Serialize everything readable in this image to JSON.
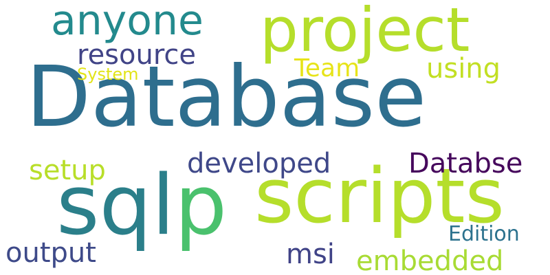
{
  "words": [
    {
      "text": "Database",
      "color": "#2e6e8e"
    },
    {
      "text": "sqlp",
      "color": "#2b7f8a"
    },
    {
      "text": "scripts",
      "color": "#b5de2b"
    },
    {
      "text": "project",
      "color": "#b5de2b"
    },
    {
      "text": "anyone",
      "color": "#238a8d"
    },
    {
      "text": "resource",
      "color": "#414487"
    },
    {
      "text": "Team",
      "color": "#e7e419"
    },
    {
      "text": "using",
      "color": "#c2df23"
    },
    {
      "text": "System",
      "color": "#e2e418"
    },
    {
      "text": "developed",
      "color": "#3f4889"
    },
    {
      "text": "Databse",
      "color": "#46085c"
    },
    {
      "text": "setup",
      "color": "#b8de29"
    },
    {
      "text": "output",
      "color": "#3e4a89"
    },
    {
      "text": "msi",
      "color": "#404387"
    },
    {
      "text": "embedded",
      "color": "#a8db34"
    },
    {
      "text": "Edition",
      "color": "#2c728e"
    }
  ],
  "accent_letter": {
    "text": "p",
    "color": "#4ac16d"
  }
}
